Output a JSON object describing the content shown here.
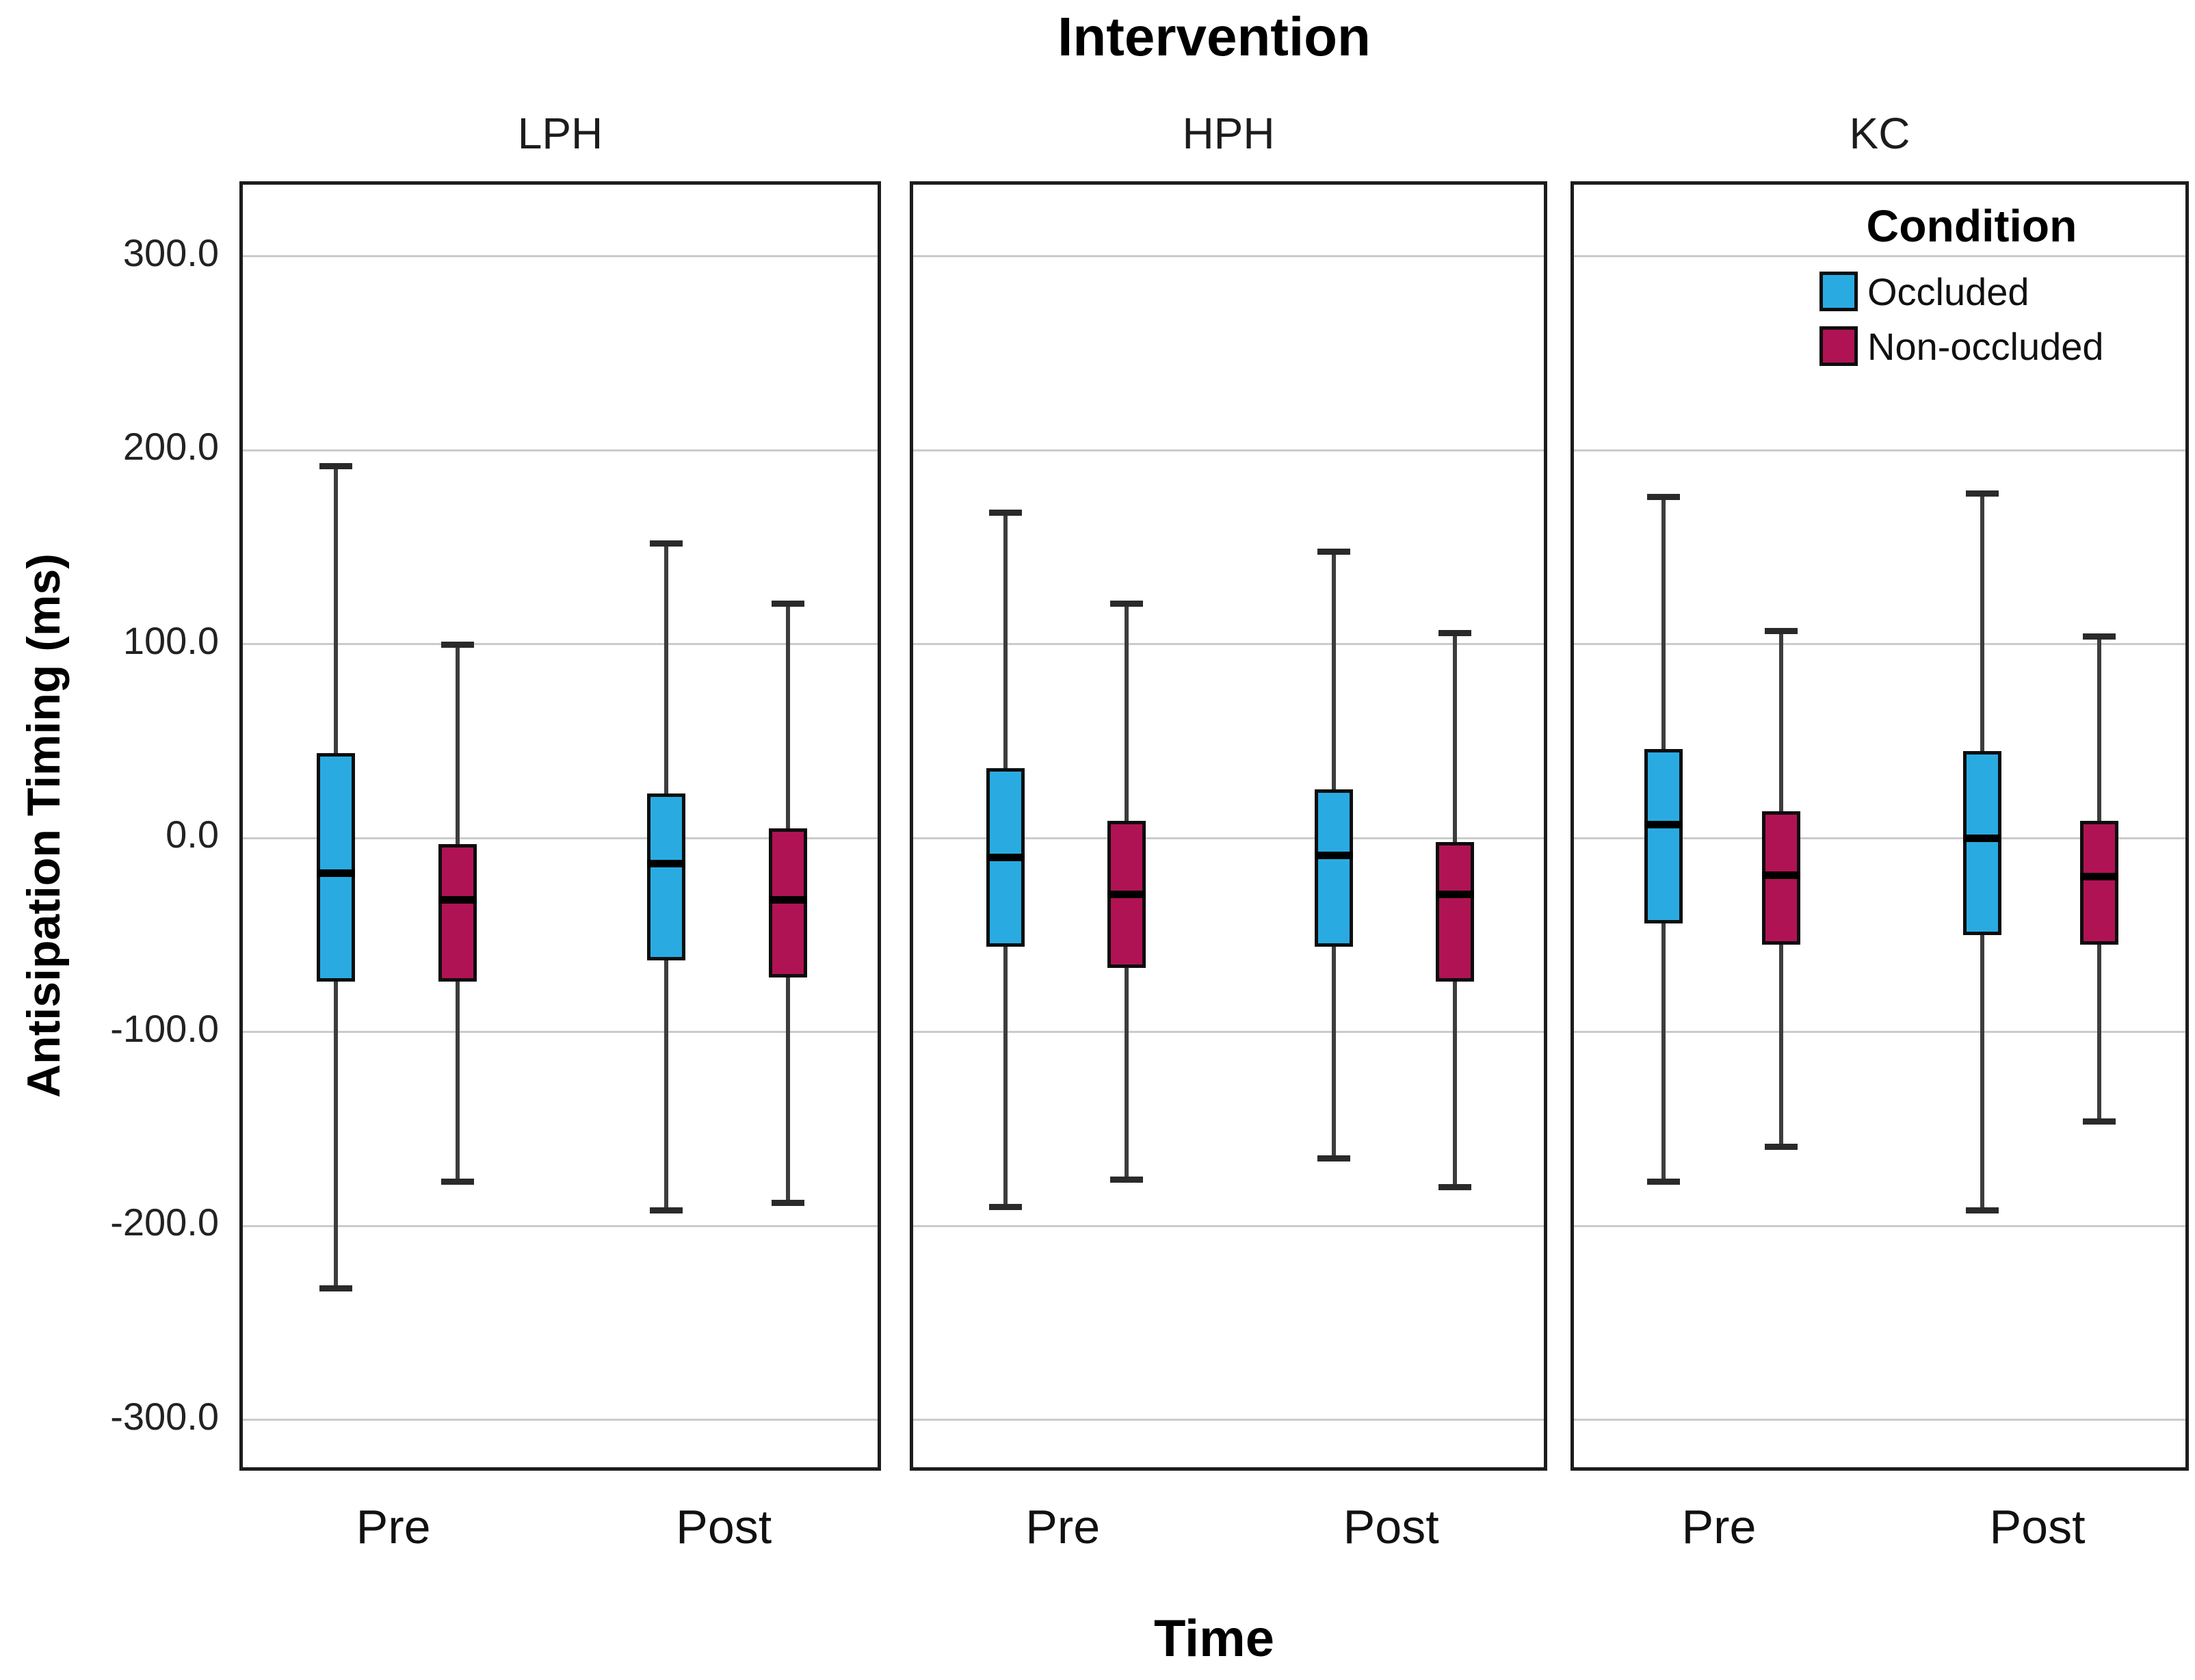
{
  "title": "Intervention",
  "legend": {
    "title": "Condition",
    "items": [
      {
        "label": "Occluded",
        "color": "#29ABE2"
      },
      {
        "label": "Non-occluded",
        "color": "#B01353"
      }
    ]
  },
  "chart_data": {
    "type": "boxplot",
    "title": "Intervention",
    "xlabel": "Time",
    "ylabel": "Antisipation Timing (ms)",
    "facet_variable": "Intervention",
    "facets": [
      "LPH",
      "HPH",
      "KC"
    ],
    "categories": [
      "Pre",
      "Post"
    ],
    "conditions": [
      "Occluded",
      "Non-occluded"
    ],
    "ylim": [
      -328,
      337
    ],
    "grid": true,
    "legend_position": "inside-top-right-of-KC-panel",
    "y_ticks": [
      {
        "value": 300,
        "label": "300.0"
      },
      {
        "value": 200,
        "label": "200.0"
      },
      {
        "value": 100,
        "label": "100.0"
      },
      {
        "value": 0,
        "label": "0.0"
      },
      {
        "value": -100,
        "label": "-100.0"
      },
      {
        "value": -200,
        "label": "-200.0"
      },
      {
        "value": -300,
        "label": "-300.0"
      }
    ],
    "colors": {
      "Occluded": "#29ABE2",
      "Non-occluded": "#B01353",
      "median": "#000000",
      "box_border": "#0d0d0d",
      "whisker": "#3d3d3d",
      "grid": "#cbcbcb",
      "frame": "#1c1c1c"
    },
    "panels": [
      {
        "label": "LPH",
        "boxes": [
          {
            "time": "Pre",
            "condition": "Occluded",
            "whisker_low": -232,
            "q1": -74,
            "median": -18,
            "q3": 44,
            "whisker_high": 192
          },
          {
            "time": "Pre",
            "condition": "Non-occluded",
            "whisker_low": -177,
            "q1": -74,
            "median": -32,
            "q3": -3,
            "whisker_high": 100
          },
          {
            "time": "Post",
            "condition": "Occluded",
            "whisker_low": -192,
            "q1": -63,
            "median": -13,
            "q3": 23,
            "whisker_high": 152
          },
          {
            "time": "Post",
            "condition": "Non-occluded",
            "whisker_low": -188,
            "q1": -72,
            "median": -32,
            "q3": 5,
            "whisker_high": 121
          }
        ]
      },
      {
        "label": "HPH",
        "boxes": [
          {
            "time": "Pre",
            "condition": "Occluded",
            "whisker_low": -190,
            "q1": -56,
            "median": -10,
            "q3": 36,
            "whisker_high": 168
          },
          {
            "time": "Pre",
            "condition": "Non-occluded",
            "whisker_low": -176,
            "q1": -67,
            "median": -29,
            "q3": 9,
            "whisker_high": 121
          },
          {
            "time": "Post",
            "condition": "Occluded",
            "whisker_low": -165,
            "q1": -56,
            "median": -9,
            "q3": 25,
            "whisker_high": 148
          },
          {
            "time": "Post",
            "condition": "Non-occluded",
            "whisker_low": -180,
            "q1": -74,
            "median": -29,
            "q3": -2,
            "whisker_high": 106
          }
        ]
      },
      {
        "label": "KC",
        "boxes": [
          {
            "time": "Pre",
            "condition": "Occluded",
            "whisker_low": -177,
            "q1": -44,
            "median": 7,
            "q3": 46,
            "whisker_high": 176
          },
          {
            "time": "Pre",
            "condition": "Non-occluded",
            "whisker_low": -159,
            "q1": -55,
            "median": -19,
            "q3": 14,
            "whisker_high": 107
          },
          {
            "time": "Post",
            "condition": "Occluded",
            "whisker_low": -192,
            "q1": -50,
            "median": 0,
            "q3": 45,
            "whisker_high": 178
          },
          {
            "time": "Post",
            "condition": "Non-occluded",
            "whisker_low": -146,
            "q1": -55,
            "median": -20,
            "q3": 9,
            "whisker_high": 104
          }
        ]
      }
    ]
  }
}
